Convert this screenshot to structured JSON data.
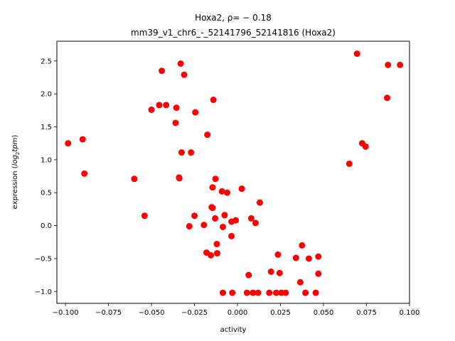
{
  "chart_data": {
    "type": "scatter",
    "title_line1": "Hoxa2, ρ= − 0.18",
    "title_line2": "mm39_v1_chr6_-_52141796_52141816 (Hoxa2)",
    "xlabel": "activity",
    "ylabel_prefix": "expression (",
    "ylabel_math": "log",
    "ylabel_sub": "2",
    "ylabel_math2": "tpm",
    "ylabel_suffix": ")",
    "xlim": [
      -0.105,
      0.1
    ],
    "ylim": [
      -1.18,
      2.8
    ],
    "x_ticks": [
      {
        "value": -0.1,
        "label": "−0.100"
      },
      {
        "value": -0.075,
        "label": "−0.075"
      },
      {
        "value": -0.05,
        "label": "−0.050"
      },
      {
        "value": -0.025,
        "label": "−0.025"
      },
      {
        "value": 0.0,
        "label": "0.000"
      },
      {
        "value": 0.025,
        "label": "0.025"
      },
      {
        "value": 0.05,
        "label": "0.050"
      },
      {
        "value": 0.075,
        "label": "0.075"
      },
      {
        "value": 0.1,
        "label": "0.100"
      }
    ],
    "y_ticks": [
      {
        "value": -1.0,
        "label": "−1.0"
      },
      {
        "value": -0.5,
        "label": "−0.5"
      },
      {
        "value": 0.0,
        "label": "0.0"
      },
      {
        "value": 0.5,
        "label": "0.5"
      },
      {
        "value": 1.0,
        "label": "1.0"
      },
      {
        "value": 1.5,
        "label": "1.5"
      },
      {
        "value": 2.0,
        "label": "2.0"
      },
      {
        "value": 2.5,
        "label": "2.5"
      }
    ],
    "marker_color": "#ff0000",
    "grid": false,
    "points": [
      {
        "x": -0.0985,
        "y": 1.25
      },
      {
        "x": -0.09,
        "y": 1.31
      },
      {
        "x": -0.089,
        "y": 0.79
      },
      {
        "x": -0.06,
        "y": 0.71
      },
      {
        "x": -0.054,
        "y": 0.15
      },
      {
        "x": -0.05,
        "y": 1.76
      },
      {
        "x": -0.0455,
        "y": 1.83
      },
      {
        "x": -0.044,
        "y": 2.35
      },
      {
        "x": -0.0415,
        "y": 1.83
      },
      {
        "x": -0.036,
        "y": 1.56
      },
      {
        "x": -0.0355,
        "y": 1.79
      },
      {
        "x": -0.034,
        "y": 0.73
      },
      {
        "x": -0.0338,
        "y": 0.72
      },
      {
        "x": -0.033,
        "y": 2.46
      },
      {
        "x": -0.0325,
        "y": 1.11
      },
      {
        "x": -0.031,
        "y": 2.29
      },
      {
        "x": -0.028,
        "y": -0.01
      },
      {
        "x": -0.027,
        "y": 1.11
      },
      {
        "x": -0.025,
        "y": 0.15
      },
      {
        "x": -0.0245,
        "y": 1.72
      },
      {
        "x": -0.0195,
        "y": 0.01
      },
      {
        "x": -0.018,
        "y": -0.41
      },
      {
        "x": -0.0175,
        "y": 1.38
      },
      {
        "x": -0.0155,
        "y": -0.45
      },
      {
        "x": -0.015,
        "y": 0.28
      },
      {
        "x": -0.0145,
        "y": 0.27
      },
      {
        "x": -0.0145,
        "y": 0.58
      },
      {
        "x": -0.014,
        "y": 1.91
      },
      {
        "x": -0.013,
        "y": 0.11
      },
      {
        "x": -0.0128,
        "y": 0.71
      },
      {
        "x": -0.012,
        "y": -0.28
      },
      {
        "x": -0.0118,
        "y": -0.42
      },
      {
        "x": -0.009,
        "y": 0.52
      },
      {
        "x": -0.0085,
        "y": -0.02
      },
      {
        "x": -0.0085,
        "y": -1.02
      },
      {
        "x": -0.0075,
        "y": 0.16
      },
      {
        "x": -0.006,
        "y": 0.5
      },
      {
        "x": -0.0035,
        "y": -0.16
      },
      {
        "x": -0.0035,
        "y": 0.06
      },
      {
        "x": -0.003,
        "y": -1.02
      },
      {
        "x": -0.001,
        "y": 0.08
      },
      {
        "x": 0.0025,
        "y": 0.56
      },
      {
        "x": 0.0055,
        "y": -1.02
      },
      {
        "x": 0.0065,
        "y": -0.75
      },
      {
        "x": 0.008,
        "y": 0.11
      },
      {
        "x": 0.009,
        "y": -1.02
      },
      {
        "x": 0.0105,
        "y": 0.04
      },
      {
        "x": 0.012,
        "y": -1.02
      },
      {
        "x": 0.013,
        "y": 0.35
      },
      {
        "x": 0.0185,
        "y": -1.02
      },
      {
        "x": 0.0195,
        "y": -0.7
      },
      {
        "x": 0.0225,
        "y": -1.02
      },
      {
        "x": 0.0235,
        "y": -0.44
      },
      {
        "x": 0.0245,
        "y": -0.72
      },
      {
        "x": 0.0255,
        "y": -1.02
      },
      {
        "x": 0.028,
        "y": -1.02
      },
      {
        "x": 0.034,
        "y": -0.49
      },
      {
        "x": 0.0365,
        "y": -0.86
      },
      {
        "x": 0.0375,
        "y": -0.3
      },
      {
        "x": 0.0395,
        "y": -1.02
      },
      {
        "x": 0.0415,
        "y": -0.5
      },
      {
        "x": 0.0455,
        "y": -1.02
      },
      {
        "x": 0.047,
        "y": -0.47
      },
      {
        "x": 0.047,
        "y": -0.73
      },
      {
        "x": 0.065,
        "y": 0.94
      },
      {
        "x": 0.0695,
        "y": 2.61
      },
      {
        "x": 0.0725,
        "y": 1.25
      },
      {
        "x": 0.0745,
        "y": 1.2
      },
      {
        "x": 0.087,
        "y": 1.94
      },
      {
        "x": 0.0875,
        "y": 2.44
      },
      {
        "x": 0.0945,
        "y": 2.44
      }
    ]
  }
}
